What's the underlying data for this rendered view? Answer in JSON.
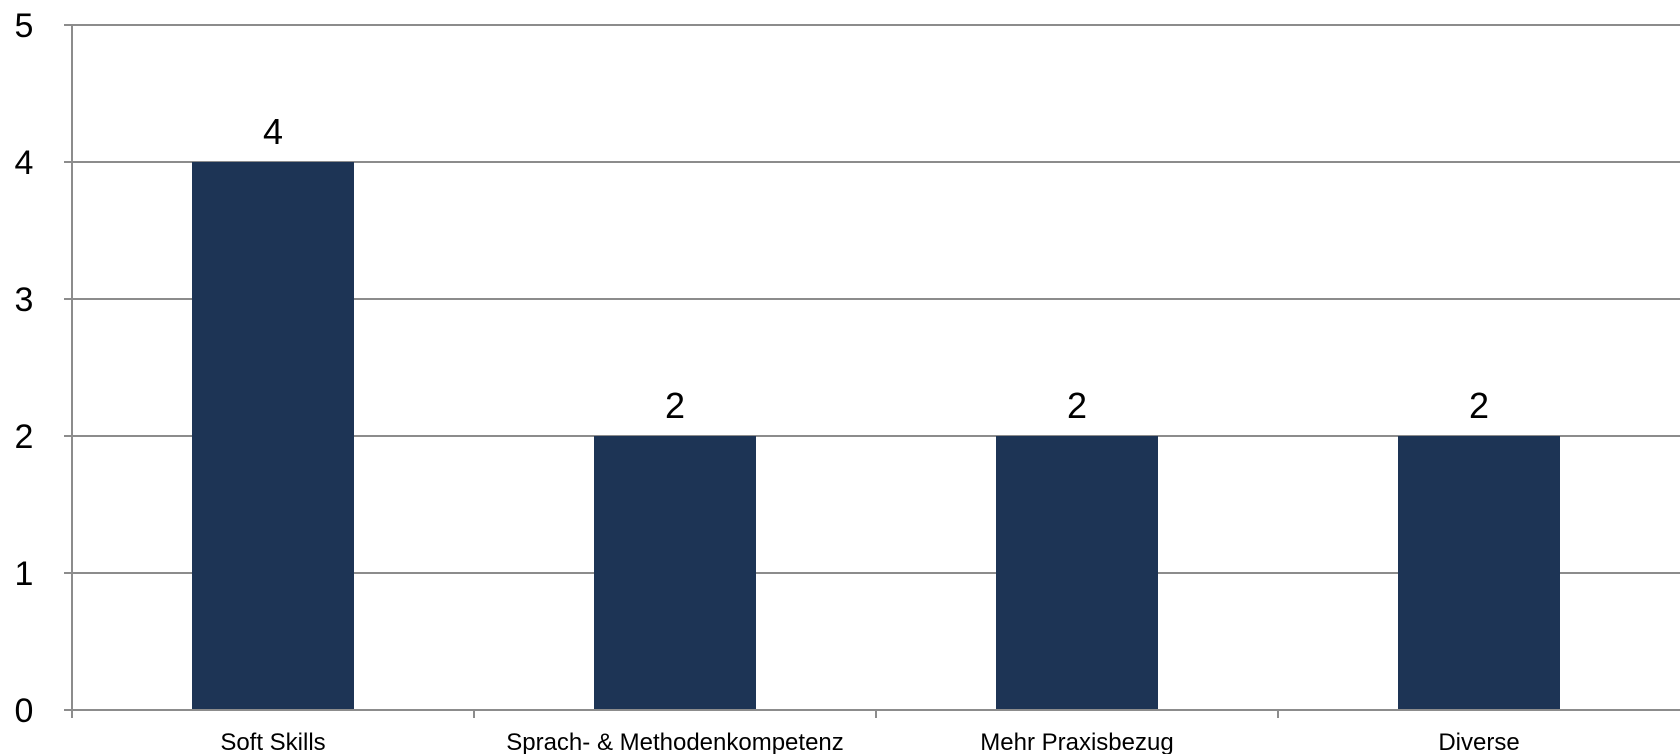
{
  "chart_data": {
    "type": "bar",
    "title": "",
    "xlabel": "",
    "ylabel": "",
    "categories": [
      "Soft Skills",
      "Sprach- & Methodenkompetenz",
      "Mehr Praxisbezug",
      "Diverse"
    ],
    "values": [
      4,
      2,
      2,
      2
    ],
    "ylim": [
      0,
      5
    ],
    "yticks": [
      "0",
      "1",
      "2",
      "3",
      "4",
      "5"
    ],
    "data_labels": [
      "4",
      "2",
      "2",
      "2"
    ],
    "grid": true,
    "legend": "none",
    "bar_color": "#1d3455"
  }
}
